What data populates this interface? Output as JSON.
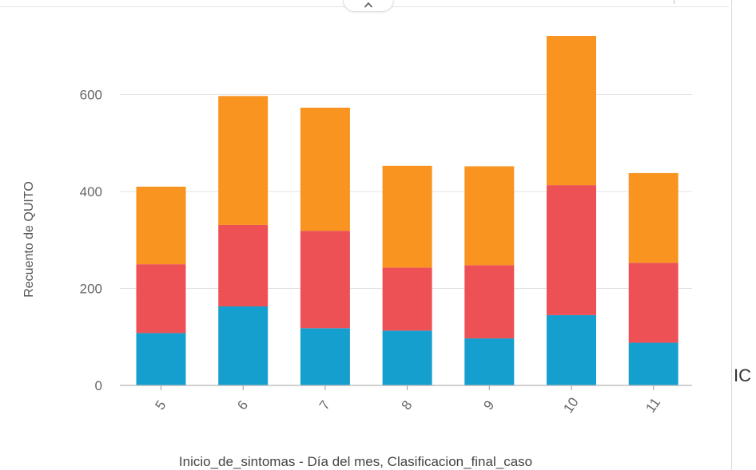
{
  "chart_data": {
    "type": "bar",
    "stacked": true,
    "categories": [
      "5",
      "6",
      "7",
      "8",
      "9",
      "10",
      "11"
    ],
    "series": [
      {
        "color": "#159fcf",
        "values": [
          108,
          163,
          118,
          113,
          97,
          145,
          88
        ]
      },
      {
        "color": "#ed5155",
        "values": [
          142,
          168,
          201,
          130,
          151,
          268,
          165
        ]
      },
      {
        "color": "#f8941f",
        "values": [
          160,
          266,
          254,
          210,
          204,
          308,
          185
        ]
      }
    ],
    "xlabel": "Inicio_de_sintomas - Día del mes, Clasificacion_final_caso",
    "ylabel": "Recuento de QUITO",
    "ylim": [
      0,
      720
    ],
    "yticks": [
      0,
      200,
      400,
      600
    ],
    "grid": true,
    "legend": "none"
  },
  "ui": {
    "collapse_icon": "chevron-up-icon",
    "side_text": "IC"
  }
}
